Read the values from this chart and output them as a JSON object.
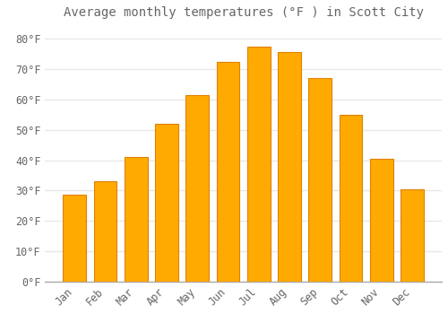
{
  "title": "Average monthly temperatures (°F ) in Scott City",
  "months": [
    "Jan",
    "Feb",
    "Mar",
    "Apr",
    "May",
    "Jun",
    "Jul",
    "Aug",
    "Sep",
    "Oct",
    "Nov",
    "Dec"
  ],
  "values": [
    28.5,
    33.0,
    41.0,
    52.0,
    61.5,
    72.5,
    77.5,
    75.5,
    67.0,
    55.0,
    40.5,
    30.5
  ],
  "bar_color": "#FFAA00",
  "bar_edge_color": "#E08000",
  "background_color": "#FFFFFF",
  "grid_color": "#E8E8E8",
  "text_color": "#666666",
  "ylim": [
    0,
    85
  ],
  "yticks": [
    0,
    10,
    20,
    30,
    40,
    50,
    60,
    70,
    80
  ],
  "title_fontsize": 10,
  "tick_fontsize": 8.5,
  "font_family": "monospace",
  "bar_width": 0.75
}
